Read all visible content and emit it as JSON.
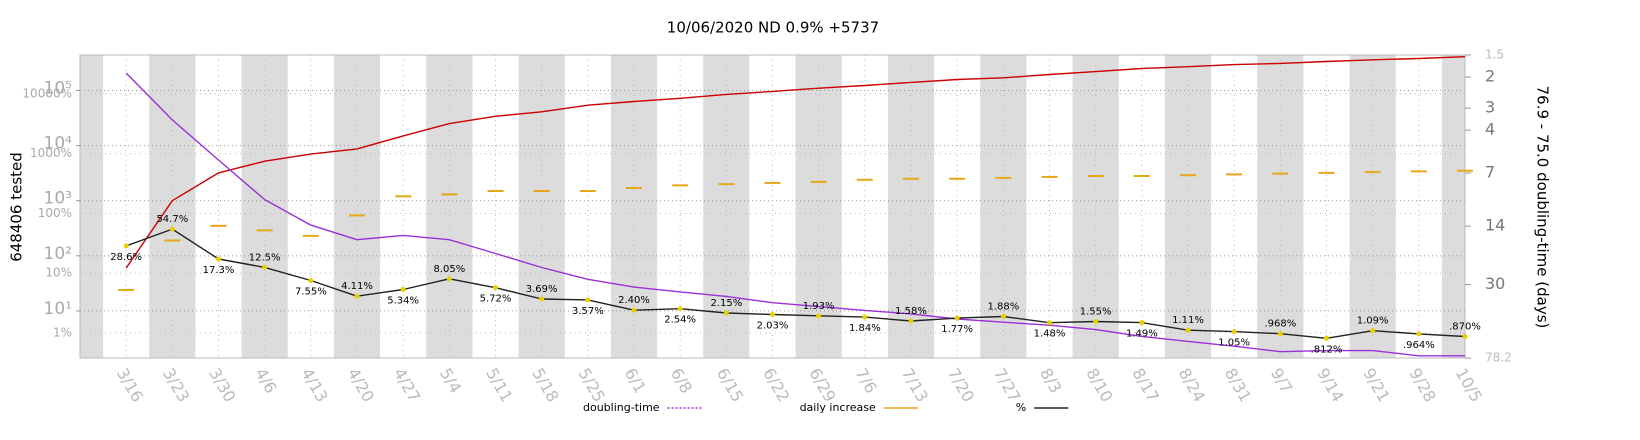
{
  "chart_data": {
    "type": "line",
    "title": "10/06/2020 ND 0.9% +5737",
    "ylabel": "648406 tested",
    "y2label": "76.9 - 75.0 doubling-time (days)",
    "log_scale": true,
    "grid": true,
    "categories": [
      "3/16",
      "3/23",
      "3/30",
      "4/6",
      "4/13",
      "4/20",
      "4/27",
      "5/4",
      "5/11",
      "5/18",
      "5/25",
      "6/1",
      "6/8",
      "6/15",
      "6/22",
      "6/29",
      "7/6",
      "7/13",
      "7/20",
      "7/27",
      "8/3",
      "8/10",
      "8/17",
      "8/24",
      "8/31",
      "9/7",
      "9/14",
      "9/21",
      "9/28",
      "10/5"
    ],
    "ylim": [
      1.4,
      440000
    ],
    "yticks": [
      {
        "value": 10,
        "label": "10¹"
      },
      {
        "value": 100,
        "label": "10²"
      },
      {
        "value": 1000,
        "label": "10³"
      },
      {
        "value": 10000,
        "label": "10⁴"
      },
      {
        "value": 100000,
        "label": "10⁵"
      }
    ],
    "y3lim": [
      0.38,
      45000
    ],
    "y3ticks": [
      {
        "value": 1,
        "label": "1%"
      },
      {
        "value": 10,
        "label": "10%"
      },
      {
        "value": 100,
        "label": "100%"
      },
      {
        "value": 1000,
        "label": "1000%"
      },
      {
        "value": 10000,
        "label": "10000%"
      }
    ],
    "y2lim": [
      78.2,
      1.5
    ],
    "y2ticks": [
      1.5,
      2,
      3,
      4,
      7,
      14,
      30,
      78.2
    ],
    "series": [
      {
        "color": "#cc0000",
        "style": "line",
        "values": [
          60,
          1000,
          3200,
          5200,
          7000,
          8700,
          15000,
          25000,
          34000,
          41000,
          54000,
          63000,
          72000,
          85000,
          96000,
          110000,
          123000,
          140000,
          158000,
          170000,
          195000,
          220000,
          250000,
          270000,
          295000,
          310000,
          335000,
          360000,
          380000,
          410000
        ]
      },
      {
        "name": "doubling-time",
        "color": "#9b30d9",
        "style": "line",
        "axis": "y2",
        "values": [
          1.9,
          3.5,
          5.9,
          9.9,
          13.8,
          16.7,
          15.8,
          16.7,
          20,
          24,
          28,
          31,
          33,
          35,
          38,
          40,
          42,
          44,
          47,
          49,
          51,
          54,
          59,
          63,
          67,
          72,
          71,
          71,
          76,
          76
        ]
      },
      {
        "name": "daily increase",
        "color": "#e6a817",
        "style": "dashes",
        "values": [
          24,
          190,
          350,
          290,
          230,
          540,
          1200,
          1300,
          1500,
          1500,
          1500,
          1700,
          1900,
          2000,
          2100,
          2200,
          2400,
          2500,
          2500,
          2600,
          2700,
          2800,
          2800,
          2900,
          3000,
          3100,
          3200,
          3300,
          3400,
          3500
        ]
      },
      {
        "name": "%",
        "color": "#222222",
        "style": "line",
        "axis": "y3",
        "values": [
          28.6,
          54.7,
          17.3,
          12.5,
          7.55,
          4.11,
          5.34,
          8.05,
          5.72,
          3.69,
          3.57,
          2.4,
          2.54,
          2.15,
          2.03,
          1.93,
          1.84,
          1.58,
          1.77,
          1.88,
          1.48,
          1.55,
          1.49,
          1.11,
          1.05,
          0.968,
          0.812,
          1.09,
          0.964,
          0.87
        ],
        "value_labels": [
          "28.6%",
          "54.7%",
          "17.3%",
          "12.5%",
          "7.55%",
          "4.11%",
          "5.34%",
          "8.05%",
          "5.72%",
          "3.69%",
          "3.57%",
          "2.40%",
          "2.54%",
          "2.15%",
          "2.03%",
          "1.93%",
          "1.84%",
          "1.58%",
          "1.77%",
          "1.88%",
          "1.48%",
          "1.55%",
          "1.49%",
          "1.11%",
          "1.05%",
          ".968%",
          ".812%",
          "1.09%",
          ".964%",
          ".870%"
        ]
      }
    ]
  }
}
